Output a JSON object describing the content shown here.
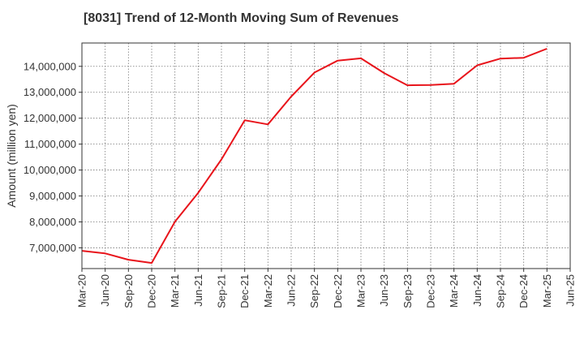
{
  "chart_data": {
    "type": "line",
    "title": "[8031]  Trend of 12-Month Moving Sum of Revenues",
    "xlabel": "",
    "ylabel": "Amount (million yen)",
    "x": [
      "Mar-20",
      "Jun-20",
      "Sep-20",
      "Dec-20",
      "Mar-21",
      "Jun-21",
      "Sep-21",
      "Dec-21",
      "Mar-22",
      "Jun-22",
      "Sep-22",
      "Dec-22",
      "Mar-23",
      "Jun-23",
      "Sep-23",
      "Dec-23",
      "Mar-24",
      "Jun-24",
      "Sep-24",
      "Dec-24",
      "Mar-25"
    ],
    "x_tick_labels": [
      "Mar-20",
      "Jun-20",
      "Sep-20",
      "Dec-20",
      "Mar-21",
      "Jun-21",
      "Sep-21",
      "Dec-21",
      "Mar-22",
      "Jun-22",
      "Sep-22",
      "Dec-22",
      "Mar-23",
      "Jun-23",
      "Sep-23",
      "Dec-23",
      "Mar-24",
      "Jun-24",
      "Sep-24",
      "Dec-24",
      "Mar-25",
      "Jun-25"
    ],
    "series": [
      {
        "name": "",
        "color": "#e8141b",
        "values": [
          6885000,
          6785000,
          6540000,
          6415000,
          8010000,
          9120000,
          10410000,
          11920000,
          11760000,
          12835000,
          13760000,
          14220000,
          14310000,
          13740000,
          13270000,
          13280000,
          13330000,
          14040000,
          14300000,
          14330000,
          14680000
        ]
      }
    ],
    "ylim": [
      6200000,
      14900000
    ],
    "y_ticks": [
      7000000,
      8000000,
      9000000,
      10000000,
      11000000,
      12000000,
      13000000,
      14000000
    ],
    "y_tick_labels": [
      "7,000,000",
      "8,000,000",
      "9,000,000",
      "10,000,000",
      "11,000,000",
      "12,000,000",
      "13,000,000",
      "14,000,000"
    ],
    "grid": true,
    "grid_style": "dotted",
    "legend": "none"
  }
}
